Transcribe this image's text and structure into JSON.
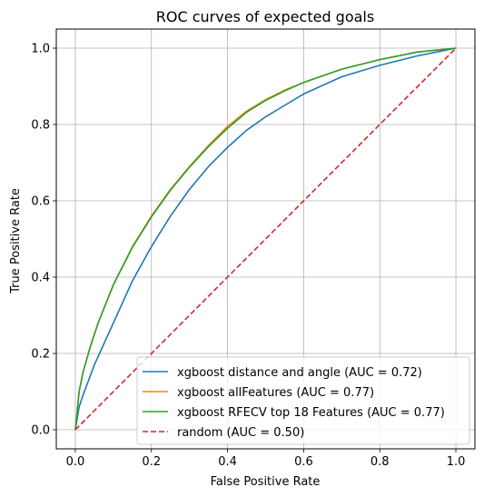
{
  "chart_data": {
    "type": "line",
    "title": "ROC curves of expected goals",
    "xlabel": "False Positive Rate",
    "ylabel": "True Positive Rate",
    "xlim": [
      -0.05,
      1.05
    ],
    "ylim": [
      -0.05,
      1.05
    ],
    "xticks": [
      0.0,
      0.2,
      0.4,
      0.6,
      0.8,
      1.0
    ],
    "yticks": [
      0.0,
      0.2,
      0.4,
      0.6,
      0.8,
      1.0
    ],
    "xtick_labels": [
      "0.0",
      "0.2",
      "0.4",
      "0.6",
      "0.8",
      "1.0"
    ],
    "ytick_labels": [
      "0.0",
      "0.2",
      "0.4",
      "0.6",
      "0.8",
      "1.0"
    ],
    "grid": true,
    "legend_position": "bottom-right",
    "series": [
      {
        "name": "xgboost distance and angle (AUC = 0.72)",
        "color": "#1f77b4",
        "dash": "solid",
        "x": [
          0.0,
          0.01,
          0.02,
          0.05,
          0.1,
          0.15,
          0.2,
          0.25,
          0.3,
          0.35,
          0.4,
          0.45,
          0.5,
          0.55,
          0.6,
          0.7,
          0.8,
          0.9,
          0.95,
          1.0
        ],
        "y": [
          0.0,
          0.06,
          0.09,
          0.17,
          0.28,
          0.39,
          0.48,
          0.56,
          0.63,
          0.69,
          0.74,
          0.785,
          0.82,
          0.85,
          0.88,
          0.925,
          0.955,
          0.98,
          0.99,
          1.0
        ]
      },
      {
        "name": "xgboost allFeatures (AUC = 0.77)",
        "color": "#ff7f0e",
        "dash": "solid",
        "x": [
          0.0,
          0.005,
          0.01,
          0.02,
          0.04,
          0.06,
          0.1,
          0.15,
          0.2,
          0.25,
          0.3,
          0.35,
          0.4,
          0.45,
          0.5,
          0.55,
          0.6,
          0.7,
          0.8,
          0.9,
          1.0
        ],
        "y": [
          0.0,
          0.05,
          0.1,
          0.15,
          0.22,
          0.28,
          0.38,
          0.48,
          0.56,
          0.63,
          0.69,
          0.745,
          0.795,
          0.835,
          0.865,
          0.89,
          0.91,
          0.945,
          0.97,
          0.99,
          1.0
        ]
      },
      {
        "name": "xgboost RFECV top 18 Features (AUC = 0.77)",
        "color": "#2ca02c",
        "dash": "solid",
        "x": [
          0.0,
          0.005,
          0.01,
          0.02,
          0.04,
          0.06,
          0.1,
          0.15,
          0.2,
          0.25,
          0.3,
          0.35,
          0.4,
          0.45,
          0.5,
          0.55,
          0.6,
          0.7,
          0.8,
          0.9,
          1.0
        ],
        "y": [
          0.0,
          0.05,
          0.1,
          0.15,
          0.22,
          0.28,
          0.38,
          0.478,
          0.558,
          0.628,
          0.688,
          0.742,
          0.79,
          0.832,
          0.863,
          0.888,
          0.91,
          0.945,
          0.97,
          0.99,
          1.0
        ]
      },
      {
        "name": "random (AUC = 0.50)",
        "color": "#d62728",
        "dash": "dashed",
        "x": [
          0.0,
          1.0
        ],
        "y": [
          0.0,
          1.0
        ]
      }
    ]
  }
}
